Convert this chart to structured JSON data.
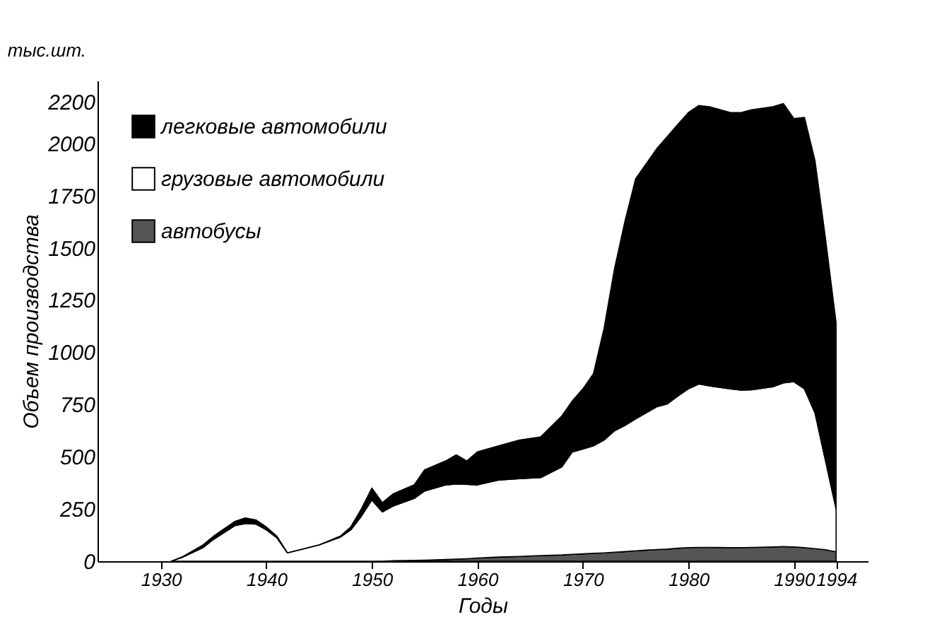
{
  "chart_data": {
    "type": "area",
    "stacked": true,
    "ylabel": "Объем производства",
    "xlabel": "Годы",
    "annotations": [
      "тыс.шт."
    ],
    "x": [
      1931,
      1932,
      1934,
      1935,
      1937,
      1938,
      1939,
      1940,
      1941,
      1942,
      1945,
      1947,
      1948,
      1949,
      1950,
      1951,
      1952,
      1954,
      1955,
      1957,
      1958,
      1959,
      1960,
      1962,
      1964,
      1966,
      1968,
      1969,
      1970,
      1971,
      1972,
      1973,
      1974,
      1975,
      1976,
      1977,
      1978,
      1979,
      1980,
      1981,
      1982,
      1984,
      1985,
      1986,
      1988,
      1989,
      1990,
      1991,
      1992,
      1993,
      1994
    ],
    "series": [
      {
        "name": "автобусы",
        "color": "#555555",
        "values": [
          0,
          0,
          0,
          0,
          0,
          0,
          0,
          0,
          0,
          0,
          0,
          0,
          0,
          0,
          0,
          0,
          2,
          4,
          5,
          8,
          10,
          12,
          15,
          20,
          23,
          27,
          30,
          33,
          35,
          38,
          40,
          43,
          46,
          50,
          53,
          56,
          58,
          62,
          65,
          66,
          66,
          65,
          65,
          66,
          68,
          70,
          68,
          65,
          60,
          55,
          45
        ]
      },
      {
        "name": "грузовые автомобили",
        "color": "#ffffff",
        "values": [
          0,
          18,
          65,
          105,
          170,
          180,
          178,
          150,
          112,
          40,
          78,
          115,
          150,
          215,
          293,
          236,
          262,
          296,
          331,
          357,
          360,
          356,
          350,
          368,
          372,
          373,
          421,
          490,
          502,
          514,
          540,
          581,
          604,
          631,
          657,
          683,
          695,
          728,
          760,
          782,
          773,
          760,
          754,
          754,
          767,
          783,
          791,
          760,
          650,
          425,
          205
        ]
      },
      {
        "name": "легковые автомобили",
        "color": "#000000",
        "values": [
          0,
          2,
          13,
          15,
          20,
          27,
          20,
          14,
          8,
          0,
          0,
          5,
          14,
          35,
          57,
          44,
          58,
          65,
          101,
          115,
          139,
          112,
          158,
          164,
          185,
          195,
          244,
          244,
          288,
          345,
          532,
          776,
          980,
          1149,
          1192,
          1235,
          1279,
          1300,
          1322,
          1333,
          1336,
          1322,
          1328,
          1340,
          1340,
          1337,
          1259,
          1299,
          1207,
          1063,
          891
        ]
      }
    ],
    "xlim": [
      1924,
      1997
    ],
    "xticks": [
      1930,
      1940,
      1950,
      1960,
      1970,
      1980,
      1990,
      1994
    ],
    "ylim": [
      0,
      2300
    ],
    "yticks": [
      0,
      250,
      500,
      750,
      1000,
      1250,
      1500,
      1750,
      2000,
      2200
    ],
    "grid": false,
    "legend": "top left"
  }
}
